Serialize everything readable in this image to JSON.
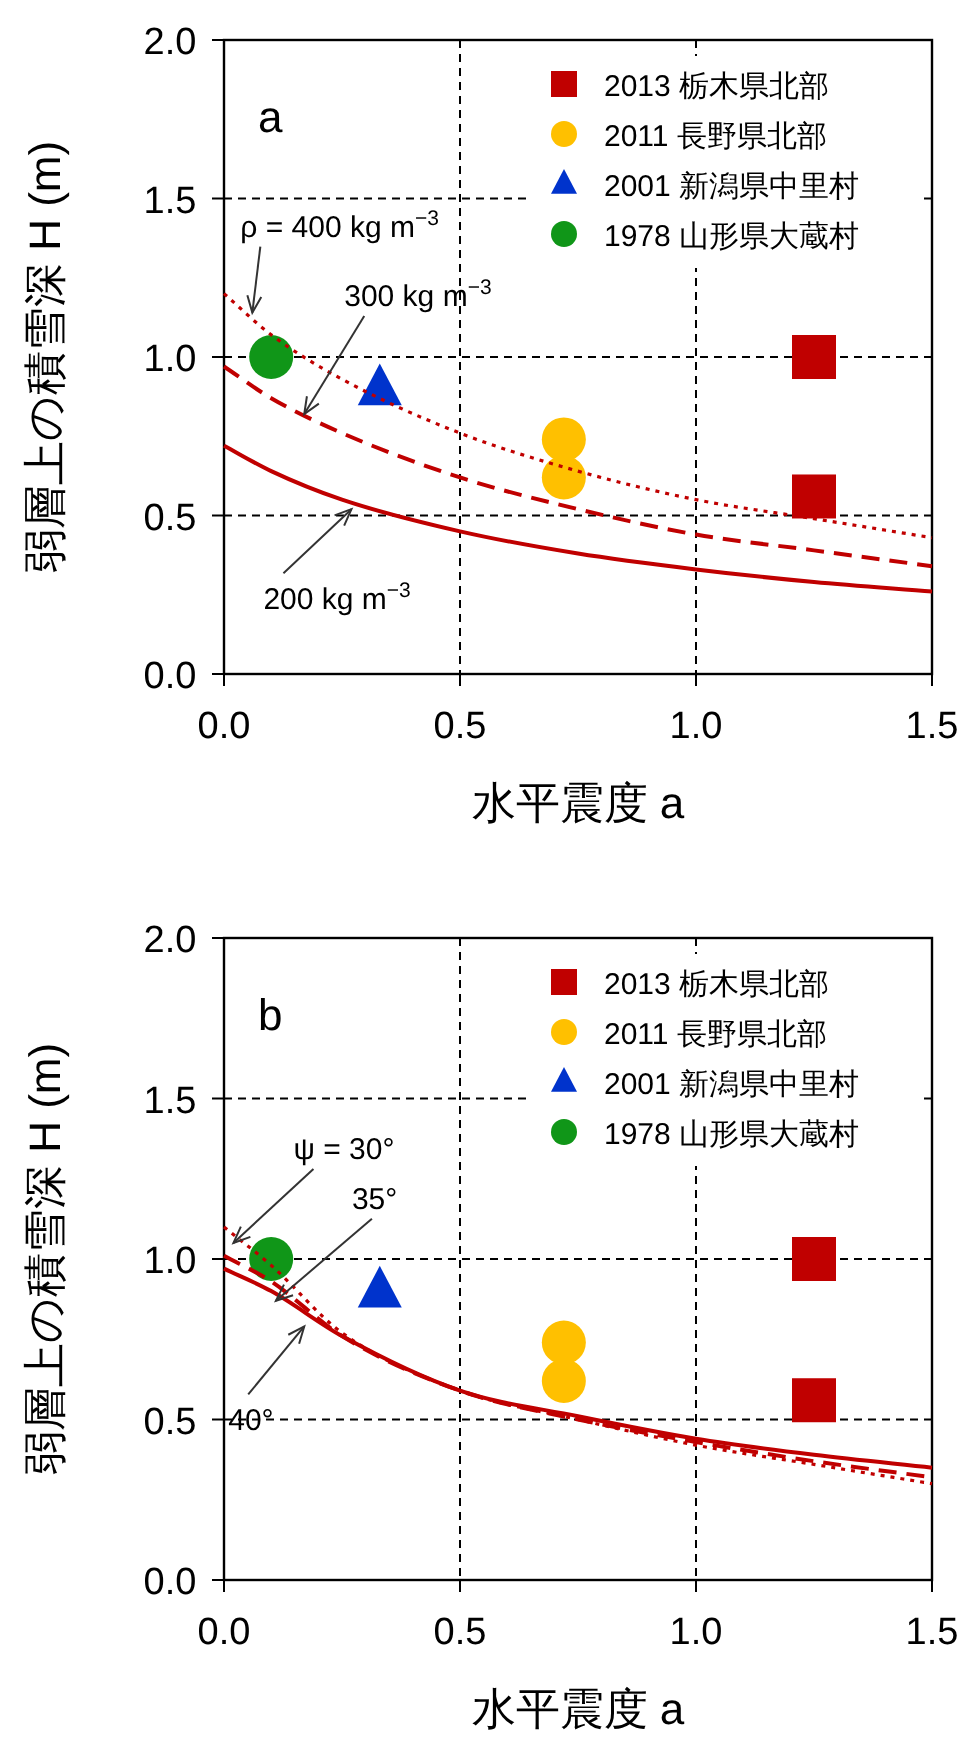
{
  "chart_data": [
    {
      "type": "scatter",
      "title": "a",
      "xlabel": "水平震度 a",
      "ylabel": "弱層上の積雪深 H (m)",
      "xlim": [
        0,
        1.5
      ],
      "ylim": [
        0,
        2
      ],
      "xticks": [
        {
          "value": 0,
          "label": "0.0"
        },
        {
          "value": 0.5,
          "label": "0.5"
        },
        {
          "value": 1,
          "label": "1.0"
        },
        {
          "value": 1.5,
          "label": "1.5"
        }
      ],
      "yticks": [
        {
          "value": 0,
          "label": "0.0"
        },
        {
          "value": 0.5,
          "label": "0.5"
        },
        {
          "value": 1,
          "label": "1.0"
        },
        {
          "value": 1.5,
          "label": "1.5"
        },
        {
          "value": 2,
          "label": "2.0"
        }
      ],
      "grid": true,
      "legend": "top right",
      "series": [
        {
          "name": "2013 栃木県北部",
          "color": "#c00000",
          "marker": "square",
          "x": [
            1.25,
            1.25
          ],
          "values": [
            1.0,
            0.56
          ]
        },
        {
          "name": "2011 長野県北部",
          "color": "#ffc000",
          "marker": "circle",
          "x": [
            0.72,
            0.72
          ],
          "values": [
            0.74,
            0.62
          ]
        },
        {
          "name": "2001 新潟県中里村",
          "color": "#0033cc",
          "marker": "triangle",
          "x": [
            0.33
          ],
          "values": [
            0.9
          ]
        },
        {
          "name": "1978 山形県大蔵村",
          "color": "#109618",
          "marker": "circle",
          "x": [
            0.1
          ],
          "values": [
            1.0
          ]
        },
        {
          "type": "line",
          "color": "#c00000",
          "line_style": "solid",
          "x": [
            0,
            0.1,
            0.25,
            0.5,
            0.75,
            1.0,
            1.25,
            1.5
          ],
          "values": [
            0.72,
            0.64,
            0.55,
            0.45,
            0.38,
            0.33,
            0.29,
            0.26
          ]
        },
        {
          "type": "line",
          "color": "#c00000",
          "line_style": "dashed",
          "x": [
            0,
            0.1,
            0.25,
            0.5,
            0.75,
            1.0,
            1.25,
            1.5
          ],
          "values": [
            0.97,
            0.87,
            0.76,
            0.62,
            0.52,
            0.44,
            0.39,
            0.34
          ]
        },
        {
          "type": "line",
          "color": "#c00000",
          "line_style": "dotted",
          "x": [
            0,
            0.1,
            0.25,
            0.5,
            0.75,
            1.0,
            1.25,
            1.5
          ],
          "values": [
            1.2,
            1.07,
            0.93,
            0.76,
            0.64,
            0.55,
            0.49,
            0.43
          ]
        }
      ],
      "annotations": [
        {
          "text": "ρ = 400 kg m$^{−3}$",
          "x": 0.06,
          "y": 1.14
        },
        {
          "text": "300 kg m$^{−3}$",
          "x": 0.17,
          "y": 0.82
        },
        {
          "text": "200 kg m$^{−3}$",
          "x": 0.27,
          "y": 0.52
        }
      ]
    },
    {
      "type": "scatter",
      "title": "b",
      "xlabel": "水平震度 a",
      "ylabel": "弱層上の積雪深 H (m)",
      "xlim": [
        0,
        1.5
      ],
      "ylim": [
        0,
        2
      ],
      "xticks": [
        {
          "value": 0,
          "label": "0.0"
        },
        {
          "value": 0.5,
          "label": "0.5"
        },
        {
          "value": 1,
          "label": "1.0"
        },
        {
          "value": 1.5,
          "label": "1.5"
        }
      ],
      "yticks": [
        {
          "value": 0,
          "label": "0.0"
        },
        {
          "value": 0.5,
          "label": "0.5"
        },
        {
          "value": 1,
          "label": "1.0"
        },
        {
          "value": 1.5,
          "label": "1.5"
        },
        {
          "value": 2,
          "label": "2.0"
        }
      ],
      "grid": true,
      "legend": "top right",
      "series": [
        {
          "name": "2013 栃木県北部",
          "color": "#c00000",
          "marker": "square",
          "x": [
            1.25,
            1.25
          ],
          "values": [
            1.0,
            0.56
          ]
        },
        {
          "name": "2011 長野県北部",
          "color": "#ffc000",
          "marker": "circle",
          "x": [
            0.72,
            0.72
          ],
          "values": [
            0.74,
            0.62
          ]
        },
        {
          "name": "2001 新潟県中里村",
          "color": "#0033cc",
          "marker": "triangle",
          "x": [
            0.33
          ],
          "values": [
            0.9
          ]
        },
        {
          "name": "1978 山形県大蔵村",
          "color": "#109618",
          "marker": "circle",
          "x": [
            0.1
          ],
          "values": [
            1.0
          ]
        },
        {
          "type": "line",
          "color": "#c00000",
          "line_style": "solid",
          "x": [
            0,
            0.1,
            0.25,
            0.5,
            0.75,
            1.0,
            1.25,
            1.5
          ],
          "values": [
            0.97,
            0.9,
            0.76,
            0.59,
            0.51,
            0.44,
            0.39,
            0.35
          ]
        },
        {
          "type": "line",
          "color": "#c00000",
          "line_style": "dashed",
          "x": [
            0,
            0.1,
            0.25,
            0.5,
            0.75,
            1.0,
            1.25,
            1.5
          ],
          "values": [
            1.01,
            0.93,
            0.76,
            0.59,
            0.5,
            0.43,
            0.37,
            0.32
          ]
        },
        {
          "type": "line",
          "color": "#c00000",
          "line_style": "dotted",
          "x": [
            0,
            0.1,
            0.25,
            0.5,
            0.75,
            1.0,
            1.25,
            1.5
          ],
          "values": [
            1.1,
            0.98,
            0.77,
            0.59,
            0.5,
            0.42,
            0.36,
            0.3
          ]
        }
      ],
      "annotations": [
        {
          "text": "ψ = 30°",
          "x": 0.02,
          "y": 1.05
        },
        {
          "text": "35°",
          "x": 0.11,
          "y": 0.87
        },
        {
          "text": "40°",
          "x": 0.17,
          "y": 0.79
        }
      ]
    }
  ]
}
